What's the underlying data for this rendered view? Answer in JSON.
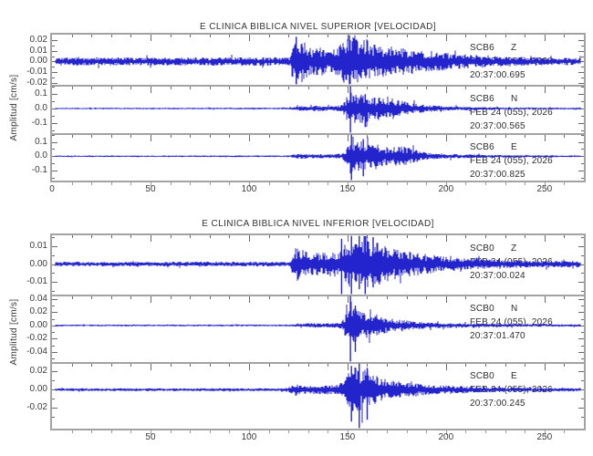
{
  "page": {
    "background": "#ffffff"
  },
  "colors": {
    "trace": "#2424cc",
    "frame": "#a3a3a3",
    "tick": "#6a6a6a",
    "axis_tick": "#9a9a9a",
    "text": "#3a3a3a",
    "station_text": "#2d2d2d"
  },
  "chart_data": [
    {
      "type": "line",
      "title": "E CLINICA BIBLICA NIVEL SUPERIOR [VELOCIDAD]",
      "xlabel": "",
      "ylabel": "Amplitud [cm/s]",
      "xlim": [
        0,
        270
      ],
      "xticks": [
        0,
        50,
        100,
        150,
        200,
        250
      ],
      "x_minor_step": 10,
      "grid": false,
      "legend_position": "none",
      "traces": [
        {
          "station": "SCB6",
          "channel": "Z",
          "date": "FEB 24 (055), 2026",
          "time": "20:37:00.695",
          "ylim": [
            -0.0217,
            0.025
          ],
          "yticks": [
            {
              "v": 0.02,
              "label": "0.02"
            },
            {
              "v": 0.01,
              "label": "0.01"
            },
            {
              "v": 0.0,
              "label": "0.00"
            },
            {
              "v": -0.01,
              "label": "-0.01"
            },
            {
              "v": -0.02,
              "label": "-0.02"
            }
          ],
          "noise_amp": 0.0035,
          "p_onset_x": 122,
          "s_peak_x": 151,
          "peak_amp": 0.025,
          "envelope": [
            [
              0,
              0.0035
            ],
            [
              118,
              0.0038
            ],
            [
              121,
              0.004
            ],
            [
              122,
              0.016
            ],
            [
              124,
              0.021
            ],
            [
              127,
              0.019
            ],
            [
              131,
              0.012
            ],
            [
              136,
              0.013
            ],
            [
              140,
              0.011
            ],
            [
              145,
              0.012
            ],
            [
              147,
              0.02
            ],
            [
              150,
              0.024
            ],
            [
              153,
              0.022
            ],
            [
              156,
              0.018
            ],
            [
              160,
              0.02
            ],
            [
              164,
              0.016
            ],
            [
              170,
              0.013
            ],
            [
              176,
              0.014
            ],
            [
              182,
              0.011
            ],
            [
              190,
              0.009
            ],
            [
              198,
              0.008
            ],
            [
              205,
              0.007
            ],
            [
              212,
              0.0065
            ],
            [
              220,
              0.005
            ],
            [
              230,
              0.0045
            ],
            [
              240,
              0.004
            ],
            [
              250,
              0.0035
            ],
            [
              270,
              0.003
            ]
          ],
          "spikes": [
            {
              "x": 151,
              "up": 0.025,
              "down": -0.0217
            },
            {
              "x": 124,
              "up": 0.023,
              "down": -0.0217
            }
          ]
        },
        {
          "station": "SCB6",
          "channel": "N",
          "date": "FEB 24 (055), 2026",
          "time": "20:37:00.565",
          "ylim": [
            -0.172,
            0.159
          ],
          "yticks": [
            {
              "v": 0.1,
              "label": "0.1"
            },
            {
              "v": 0.0,
              "label": "0.0"
            },
            {
              "v": -0.1,
              "label": "-0.1"
            }
          ],
          "noise_amp": 0.005,
          "p_onset_x": 124,
          "s_peak_x": 151,
          "peak_amp": 0.159,
          "envelope": [
            [
              0,
              0.005
            ],
            [
              120,
              0.006
            ],
            [
              124,
              0.012
            ],
            [
              127,
              0.02
            ],
            [
              130,
              0.015
            ],
            [
              134,
              0.022
            ],
            [
              138,
              0.018
            ],
            [
              142,
              0.015
            ],
            [
              146,
              0.02
            ],
            [
              149,
              0.05
            ],
            [
              151,
              0.15
            ],
            [
              153,
              0.12
            ],
            [
              156,
              0.09
            ],
            [
              159,
              0.11
            ],
            [
              162,
              0.07
            ],
            [
              166,
              0.08
            ],
            [
              170,
              0.06
            ],
            [
              174,
              0.07
            ],
            [
              178,
              0.055
            ],
            [
              182,
              0.04
            ],
            [
              186,
              0.03
            ],
            [
              190,
              0.025
            ],
            [
              196,
              0.018
            ],
            [
              202,
              0.014
            ],
            [
              210,
              0.012
            ],
            [
              218,
              0.01
            ],
            [
              226,
              0.008
            ],
            [
              240,
              0.007
            ],
            [
              270,
              0.006
            ]
          ],
          "spikes": [
            {
              "x": 151.5,
              "up": 0.159,
              "down": -0.172
            },
            {
              "x": 159,
              "up": 0.1,
              "down": -0.13
            }
          ]
        },
        {
          "station": "SCB6",
          "channel": "E",
          "date": "FEB 24 (055), 2026",
          "time": "20:37:00.825",
          "ylim": [
            -0.17,
            0.155
          ],
          "yticks": [
            {
              "v": 0.1,
              "label": "0.1"
            },
            {
              "v": 0.0,
              "label": "0.0"
            },
            {
              "v": -0.1,
              "label": "-0.1"
            }
          ],
          "noise_amp": 0.005,
          "p_onset_x": 123,
          "s_peak_x": 152,
          "peak_amp": 0.155,
          "envelope": [
            [
              0,
              0.005
            ],
            [
              120,
              0.006
            ],
            [
              123,
              0.012
            ],
            [
              126,
              0.018
            ],
            [
              130,
              0.014
            ],
            [
              134,
              0.016
            ],
            [
              138,
              0.013
            ],
            [
              143,
              0.014
            ],
            [
              147,
              0.018
            ],
            [
              150,
              0.06
            ],
            [
              152,
              0.15
            ],
            [
              154,
              0.11
            ],
            [
              157,
              0.1
            ],
            [
              160,
              0.08
            ],
            [
              164,
              0.09
            ],
            [
              168,
              0.06
            ],
            [
              172,
              0.065
            ],
            [
              176,
              0.075
            ],
            [
              180,
              0.06
            ],
            [
              184,
              0.045
            ],
            [
              188,
              0.03
            ],
            [
              194,
              0.022
            ],
            [
              200,
              0.016
            ],
            [
              208,
              0.014
            ],
            [
              216,
              0.011
            ],
            [
              226,
              0.009
            ],
            [
              240,
              0.007
            ],
            [
              270,
              0.006
            ]
          ],
          "spikes": [
            {
              "x": 152,
              "up": 0.155,
              "down": -0.17
            },
            {
              "x": 158,
              "up": 0.12,
              "down": -0.14
            }
          ]
        }
      ]
    },
    {
      "type": "line",
      "title": "E CLINICA BIBLICA NIVEL INFERIOR [VELOCIDAD]",
      "xlabel": "",
      "ylabel": "Amplitud [cm/s]",
      "xlim": [
        0,
        270
      ],
      "xticks": [
        50,
        100,
        150,
        200,
        250
      ],
      "x_minor_step": 10,
      "grid": false,
      "legend_position": "none",
      "traces": [
        {
          "station": "SCB0",
          "channel": "Z",
          "date": "FEB 24 (055), 2026",
          "time": "20:37:00.024",
          "ylim": [
            -0.017,
            0.016
          ],
          "yticks": [
            {
              "v": 0.01,
              "label": "0.01"
            },
            {
              "v": 0.0,
              "label": "0.00"
            },
            {
              "v": -0.01,
              "label": "-0.01"
            }
          ],
          "noise_amp": 0.0012,
          "p_onset_x": 122,
          "s_peak_x": 152,
          "peak_amp": 0.016,
          "envelope": [
            [
              0,
              0.0012
            ],
            [
              118,
              0.0013
            ],
            [
              121,
              0.0015
            ],
            [
              122,
              0.007
            ],
            [
              124,
              0.009
            ],
            [
              127,
              0.008
            ],
            [
              130,
              0.0065
            ],
            [
              134,
              0.007
            ],
            [
              138,
              0.006
            ],
            [
              142,
              0.0065
            ],
            [
              146,
              0.007
            ],
            [
              149,
              0.011
            ],
            [
              152,
              0.013
            ],
            [
              155,
              0.012
            ],
            [
              158,
              0.014
            ],
            [
              161,
              0.012
            ],
            [
              164,
              0.013
            ],
            [
              168,
              0.01
            ],
            [
              172,
              0.009
            ],
            [
              176,
              0.008
            ],
            [
              180,
              0.007
            ],
            [
              186,
              0.006
            ],
            [
              192,
              0.005
            ],
            [
              200,
              0.004
            ],
            [
              210,
              0.003
            ],
            [
              222,
              0.0025
            ],
            [
              240,
              0.002
            ],
            [
              270,
              0.0018
            ]
          ],
          "spikes": [
            {
              "x": 147,
              "up": 0.014,
              "down": -0.017
            },
            {
              "x": 152,
              "up": 0.016,
              "down": -0.017
            },
            {
              "x": 156,
              "up": 0.016,
              "down": -0.014
            },
            {
              "x": 159,
              "up": 0.0155,
              "down": -0.017
            },
            {
              "x": 163,
              "up": 0.015,
              "down": -0.013
            }
          ]
        },
        {
          "station": "SCB0",
          "channel": "N",
          "date": "FEB 24 (055), 2026",
          "time": "20:37:01.470",
          "ylim": [
            -0.0554,
            0.0453
          ],
          "yticks": [
            {
              "v": 0.04,
              "label": "0.04"
            },
            {
              "v": 0.02,
              "label": "0.02"
            },
            {
              "v": 0.0,
              "label": "0.00"
            },
            {
              "v": -0.02,
              "label": "-0.02"
            },
            {
              "v": -0.04,
              "label": "-0.04"
            }
          ],
          "noise_amp": 0.0012,
          "p_onset_x": 124,
          "s_peak_x": 151,
          "peak_amp": 0.0554,
          "envelope": [
            [
              0,
              0.0012
            ],
            [
              120,
              0.0014
            ],
            [
              124,
              0.002
            ],
            [
              128,
              0.003
            ],
            [
              133,
              0.0035
            ],
            [
              138,
              0.003
            ],
            [
              143,
              0.0035
            ],
            [
              147,
              0.005
            ],
            [
              150,
              0.02
            ],
            [
              152,
              0.035
            ],
            [
              154,
              0.028
            ],
            [
              157,
              0.022
            ],
            [
              160,
              0.018
            ],
            [
              164,
              0.015
            ],
            [
              168,
              0.012
            ],
            [
              172,
              0.01
            ],
            [
              177,
              0.008
            ],
            [
              182,
              0.0065
            ],
            [
              188,
              0.005
            ],
            [
              195,
              0.004
            ],
            [
              203,
              0.0035
            ],
            [
              212,
              0.003
            ],
            [
              225,
              0.0025
            ],
            [
              240,
              0.002
            ],
            [
              270,
              0.0018
            ]
          ],
          "spikes": [
            {
              "x": 151.5,
              "up": 0.0453,
              "down": -0.0554
            },
            {
              "x": 154,
              "up": 0.03,
              "down": -0.04
            }
          ]
        },
        {
          "station": "SCB0",
          "channel": "E",
          "date": "FEB 24 (055), 2026",
          "time": "20:37:00.245",
          "ylim": [
            -0.0427,
            0.0293
          ],
          "yticks": [
            {
              "v": 0.02,
              "label": "0.02"
            },
            {
              "v": 0.0,
              "label": "0.00"
            },
            {
              "v": -0.02,
              "label": "-0.02"
            }
          ],
          "noise_amp": 0.0015,
          "p_onset_x": 122,
          "s_peak_x": 153,
          "peak_amp": 0.0427,
          "envelope": [
            [
              0,
              0.0015
            ],
            [
              118,
              0.0016
            ],
            [
              122,
              0.004
            ],
            [
              125,
              0.006
            ],
            [
              128,
              0.005
            ],
            [
              132,
              0.0045
            ],
            [
              136,
              0.005
            ],
            [
              140,
              0.0045
            ],
            [
              144,
              0.005
            ],
            [
              148,
              0.008
            ],
            [
              151,
              0.02
            ],
            [
              153,
              0.025
            ],
            [
              156,
              0.022
            ],
            [
              159,
              0.024
            ],
            [
              162,
              0.018
            ],
            [
              166,
              0.014
            ],
            [
              170,
              0.011
            ],
            [
              174,
              0.009
            ],
            [
              178,
              0.0085
            ],
            [
              183,
              0.007
            ],
            [
              188,
              0.006
            ],
            [
              194,
              0.005
            ],
            [
              200,
              0.0045
            ],
            [
              208,
              0.004
            ],
            [
              218,
              0.003
            ],
            [
              230,
              0.0025
            ],
            [
              245,
              0.002
            ],
            [
              270,
              0.0018
            ]
          ],
          "spikes": [
            {
              "x": 152,
              "up": 0.026,
              "down": -0.035
            },
            {
              "x": 156,
              "up": 0.029,
              "down": -0.0427
            },
            {
              "x": 160,
              "up": 0.024,
              "down": -0.033
            }
          ]
        }
      ]
    }
  ]
}
